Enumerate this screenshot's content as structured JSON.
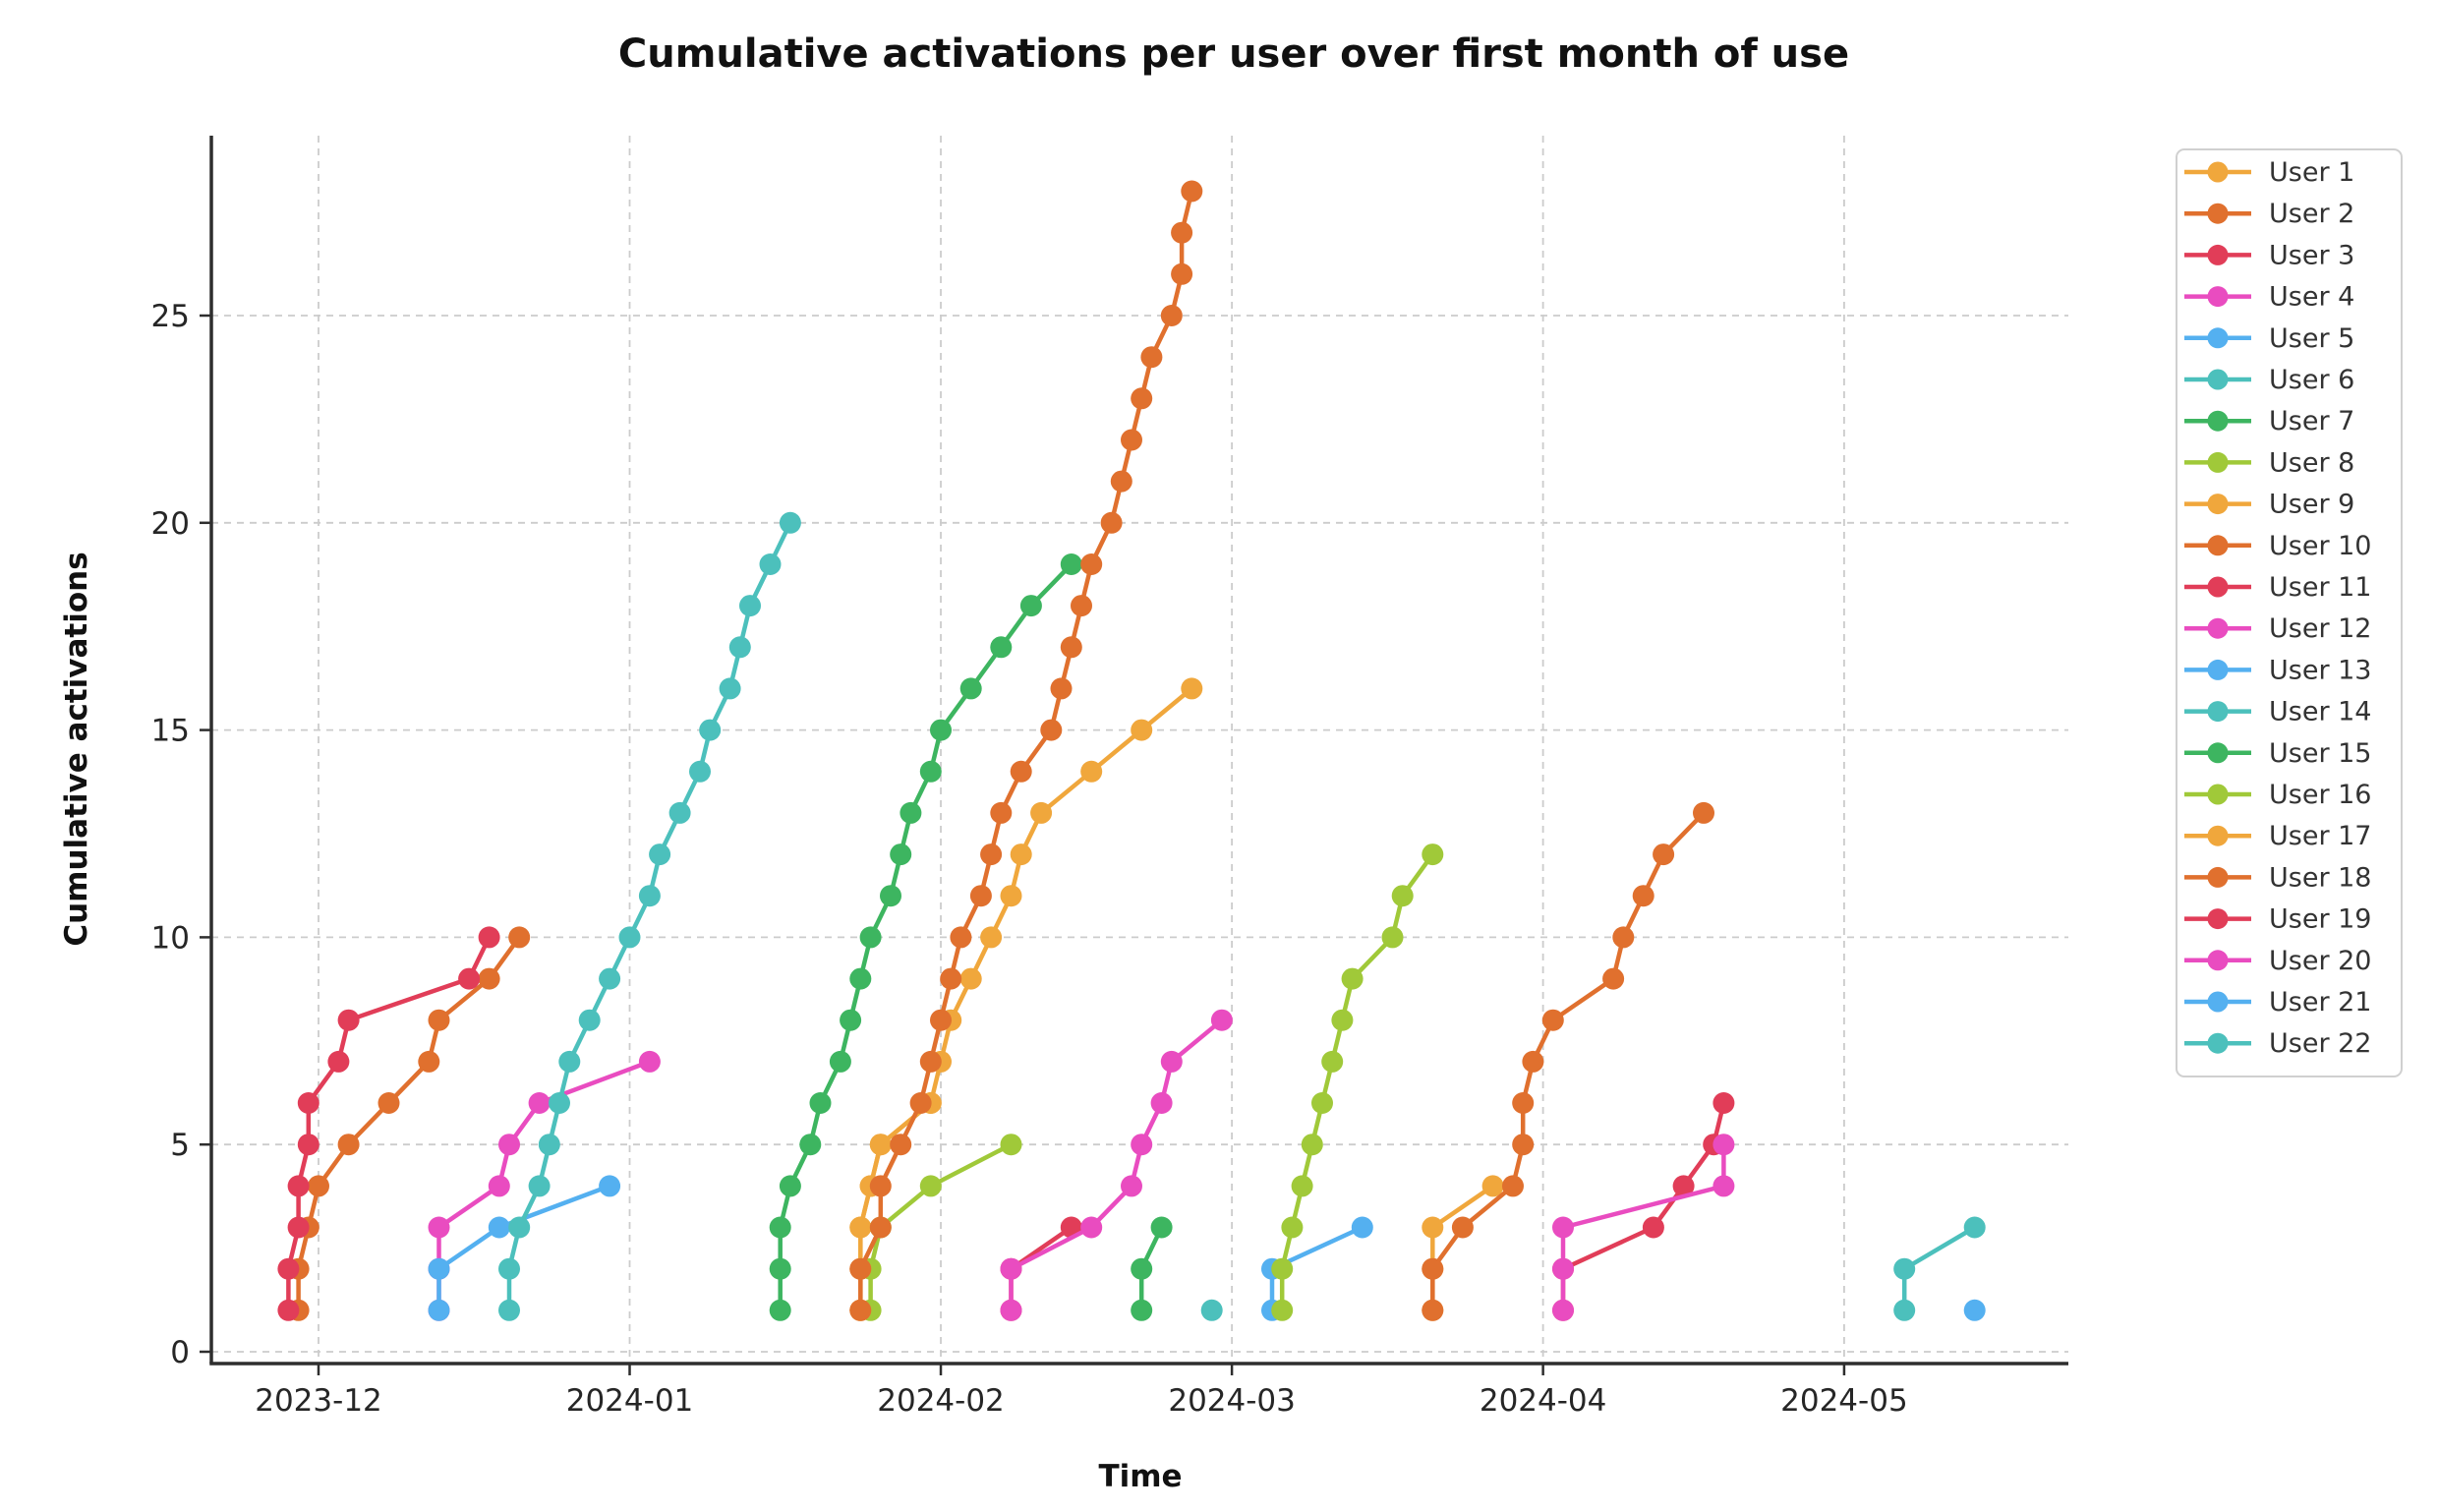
{
  "title": "Cumulative activations per user over first month of use",
  "axes": {
    "xlabel": "Time",
    "ylabel": "Cumulative activations",
    "x_tick_labels": [
      "2023-12",
      "2024-01",
      "2024-02",
      "2024-03",
      "2024-04",
      "2024-05"
    ],
    "x_tick_dates": [
      "2023-12-01",
      "2024-01-01",
      "2024-02-01",
      "2024-03-01",
      "2024-04-01",
      "2024-05-01"
    ],
    "y_tick_values": [
      0,
      5,
      10,
      15,
      20,
      25
    ]
  },
  "style": {
    "grid_color": "#cccccc",
    "spine_color": "#2e2e2e",
    "legend_border_color": "#d0d0d0",
    "background": "#ffffff"
  },
  "chart_data": {
    "type": "line",
    "title": "Cumulative activations per user over first month of use",
    "xlabel": "Time",
    "ylabel": "Cumulative activations",
    "x_axis": "dates from 2023-11-28 to 2024-05-14",
    "ylim": [
      0,
      28
    ],
    "grid": true,
    "legend_position": "right",
    "series": [
      {
        "name": "User 1",
        "color": "#F0A73C",
        "points": [
          [
            "2024-01-24",
            1
          ],
          [
            "2024-01-24",
            2
          ],
          [
            "2024-01-24",
            3
          ],
          [
            "2024-01-25",
            4
          ],
          [
            "2024-01-26",
            5
          ],
          [
            "2024-01-31",
            6
          ]
        ]
      },
      {
        "name": "User 2",
        "color": "#E0702E",
        "points": [
          [
            "2023-11-29",
            1
          ],
          [
            "2023-11-29",
            2
          ],
          [
            "2023-11-30",
            3
          ],
          [
            "2023-12-01",
            4
          ],
          [
            "2023-12-04",
            5
          ],
          [
            "2023-12-08",
            6
          ],
          [
            "2023-12-12",
            7
          ],
          [
            "2023-12-13",
            8
          ],
          [
            "2023-12-18",
            9
          ],
          [
            "2023-12-21",
            10
          ]
        ]
      },
      {
        "name": "User 3",
        "color": "#E13D58",
        "points": [
          [
            "2023-11-28",
            1
          ],
          [
            "2023-11-28",
            2
          ],
          [
            "2023-11-29",
            3
          ],
          [
            "2023-11-29",
            4
          ],
          [
            "2023-11-30",
            5
          ],
          [
            "2023-11-30",
            6
          ],
          [
            "2023-12-03",
            7
          ],
          [
            "2023-12-04",
            8
          ],
          [
            "2023-12-16",
            9
          ],
          [
            "2023-12-18",
            10
          ]
        ]
      },
      {
        "name": "User 4",
        "color": "#E94CC0",
        "points": [
          [
            "2023-12-13",
            1
          ],
          [
            "2023-12-13",
            2
          ],
          [
            "2023-12-13",
            3
          ],
          [
            "2023-12-19",
            4
          ],
          [
            "2023-12-20",
            5
          ],
          [
            "2023-12-23",
            6
          ],
          [
            "2024-01-03",
            7
          ]
        ]
      },
      {
        "name": "User 5",
        "color": "#54B0F0",
        "points": [
          [
            "2023-12-13",
            1
          ],
          [
            "2023-12-13",
            2
          ],
          [
            "2023-12-19",
            3
          ],
          [
            "2023-12-30",
            4
          ]
        ]
      },
      {
        "name": "User 6",
        "color": "#4CC0BC",
        "points": [
          [
            "2023-12-20",
            1
          ],
          [
            "2023-12-20",
            2
          ],
          [
            "2023-12-21",
            3
          ],
          [
            "2023-12-23",
            4
          ],
          [
            "2023-12-24",
            5
          ],
          [
            "2023-12-25",
            6
          ],
          [
            "2023-12-26",
            7
          ],
          [
            "2023-12-28",
            8
          ],
          [
            "2023-12-30",
            9
          ],
          [
            "2024-01-01",
            10
          ],
          [
            "2024-01-03",
            11
          ],
          [
            "2024-01-04",
            12
          ],
          [
            "2024-01-06",
            13
          ],
          [
            "2024-01-08",
            14
          ],
          [
            "2024-01-09",
            15
          ],
          [
            "2024-01-11",
            16
          ],
          [
            "2024-01-12",
            17
          ],
          [
            "2024-01-13",
            18
          ],
          [
            "2024-01-15",
            19
          ],
          [
            "2024-01-17",
            20
          ]
        ]
      },
      {
        "name": "User 7",
        "color": "#3DB560",
        "points": [
          [
            "2024-01-16",
            1
          ],
          [
            "2024-01-16",
            2
          ],
          [
            "2024-01-16",
            3
          ],
          [
            "2024-01-17",
            4
          ],
          [
            "2024-01-19",
            5
          ],
          [
            "2024-01-20",
            6
          ],
          [
            "2024-01-22",
            7
          ],
          [
            "2024-01-23",
            8
          ],
          [
            "2024-01-24",
            9
          ],
          [
            "2024-01-25",
            10
          ],
          [
            "2024-01-27",
            11
          ],
          [
            "2024-01-28",
            12
          ],
          [
            "2024-01-29",
            13
          ],
          [
            "2024-01-31",
            14
          ],
          [
            "2024-02-01",
            15
          ],
          [
            "2024-02-04",
            16
          ],
          [
            "2024-02-07",
            17
          ],
          [
            "2024-02-10",
            18
          ],
          [
            "2024-02-14",
            19
          ]
        ]
      },
      {
        "name": "User 8",
        "color": "#A0C939",
        "points": [
          [
            "2024-01-25",
            1
          ],
          [
            "2024-01-25",
            2
          ],
          [
            "2024-01-26",
            3
          ],
          [
            "2024-01-31",
            4
          ],
          [
            "2024-02-08",
            5
          ]
        ]
      },
      {
        "name": "User 9",
        "color": "#F0A73C",
        "points": [
          [
            "2024-01-24",
            1
          ],
          [
            "2024-01-24",
            2
          ],
          [
            "2024-01-24",
            3
          ],
          [
            "2024-01-25",
            4
          ],
          [
            "2024-01-26",
            5
          ],
          [
            "2024-01-31",
            6
          ],
          [
            "2024-02-01",
            7
          ],
          [
            "2024-02-02",
            8
          ],
          [
            "2024-02-04",
            9
          ],
          [
            "2024-02-06",
            10
          ],
          [
            "2024-02-08",
            11
          ],
          [
            "2024-02-09",
            12
          ],
          [
            "2024-02-11",
            13
          ],
          [
            "2024-02-16",
            14
          ],
          [
            "2024-02-21",
            15
          ],
          [
            "2024-02-26",
            16
          ]
        ]
      },
      {
        "name": "User 10",
        "color": "#E0702E",
        "points": [
          [
            "2024-01-24",
            1
          ],
          [
            "2024-01-24",
            2
          ],
          [
            "2024-01-26",
            3
          ],
          [
            "2024-01-26",
            4
          ],
          [
            "2024-01-28",
            5
          ],
          [
            "2024-01-30",
            6
          ],
          [
            "2024-01-31",
            7
          ],
          [
            "2024-02-01",
            8
          ],
          [
            "2024-02-02",
            9
          ],
          [
            "2024-02-03",
            10
          ],
          [
            "2024-02-05",
            11
          ],
          [
            "2024-02-06",
            12
          ],
          [
            "2024-02-07",
            13
          ],
          [
            "2024-02-09",
            14
          ],
          [
            "2024-02-12",
            15
          ],
          [
            "2024-02-13",
            16
          ],
          [
            "2024-02-14",
            17
          ],
          [
            "2024-02-15",
            18
          ],
          [
            "2024-02-16",
            19
          ],
          [
            "2024-02-18",
            20
          ],
          [
            "2024-02-19",
            21
          ],
          [
            "2024-02-20",
            22
          ],
          [
            "2024-02-21",
            23
          ],
          [
            "2024-02-22",
            24
          ],
          [
            "2024-02-24",
            25
          ],
          [
            "2024-02-25",
            26
          ],
          [
            "2024-02-25",
            27
          ],
          [
            "2024-02-26",
            28
          ]
        ]
      },
      {
        "name": "User 11",
        "color": "#E13D58",
        "points": [
          [
            "2024-02-08",
            1
          ],
          [
            "2024-02-08",
            2
          ],
          [
            "2024-02-14",
            3
          ]
        ]
      },
      {
        "name": "User 12",
        "color": "#E94CC0",
        "points": [
          [
            "2024-02-08",
            1
          ],
          [
            "2024-02-08",
            2
          ],
          [
            "2024-02-16",
            3
          ],
          [
            "2024-02-20",
            4
          ],
          [
            "2024-02-21",
            5
          ],
          [
            "2024-02-23",
            6
          ],
          [
            "2024-02-24",
            7
          ],
          [
            "2024-02-29",
            8
          ]
        ]
      },
      {
        "name": "User 13",
        "color": "#54B0F0",
        "points": [
          [
            "2024-03-05",
            1
          ],
          [
            "2024-03-05",
            2
          ],
          [
            "2024-03-14",
            3
          ]
        ]
      },
      {
        "name": "User 14",
        "color": "#4CC0BC",
        "points": [
          [
            "2024-02-28",
            1
          ]
        ]
      },
      {
        "name": "User 15",
        "color": "#3DB560",
        "points": [
          [
            "2024-02-21",
            1
          ],
          [
            "2024-02-21",
            2
          ],
          [
            "2024-02-23",
            3
          ]
        ]
      },
      {
        "name": "User 16",
        "color": "#A0C939",
        "points": [
          [
            "2024-03-06",
            1
          ],
          [
            "2024-03-06",
            2
          ],
          [
            "2024-03-07",
            3
          ],
          [
            "2024-03-08",
            4
          ],
          [
            "2024-03-09",
            5
          ],
          [
            "2024-03-10",
            6
          ],
          [
            "2024-03-11",
            7
          ],
          [
            "2024-03-12",
            8
          ],
          [
            "2024-03-13",
            9
          ],
          [
            "2024-03-17",
            10
          ],
          [
            "2024-03-18",
            11
          ],
          [
            "2024-03-21",
            12
          ]
        ]
      },
      {
        "name": "User 17",
        "color": "#F0A73C",
        "points": [
          [
            "2024-03-21",
            1
          ],
          [
            "2024-03-21",
            2
          ],
          [
            "2024-03-21",
            3
          ],
          [
            "2024-03-27",
            4
          ]
        ]
      },
      {
        "name": "User 18",
        "color": "#E0702E",
        "points": [
          [
            "2024-03-21",
            1
          ],
          [
            "2024-03-21",
            2
          ],
          [
            "2024-03-24",
            3
          ],
          [
            "2024-03-29",
            4
          ],
          [
            "2024-03-30",
            5
          ],
          [
            "2024-03-30",
            6
          ],
          [
            "2024-03-31",
            7
          ],
          [
            "2024-04-02",
            8
          ],
          [
            "2024-04-08",
            9
          ],
          [
            "2024-04-09",
            10
          ],
          [
            "2024-04-11",
            11
          ],
          [
            "2024-04-13",
            12
          ],
          [
            "2024-04-17",
            13
          ]
        ]
      },
      {
        "name": "User 19",
        "color": "#E13D58",
        "points": [
          [
            "2024-04-03",
            1
          ],
          [
            "2024-04-03",
            2
          ],
          [
            "2024-04-12",
            3
          ],
          [
            "2024-04-15",
            4
          ],
          [
            "2024-04-18",
            5
          ],
          [
            "2024-04-19",
            6
          ]
        ]
      },
      {
        "name": "User 20",
        "color": "#E94CC0",
        "points": [
          [
            "2024-04-03",
            1
          ],
          [
            "2024-04-03",
            2
          ],
          [
            "2024-04-03",
            3
          ],
          [
            "2024-04-19",
            4
          ],
          [
            "2024-04-19",
            5
          ]
        ]
      },
      {
        "name": "User 21",
        "color": "#54B0F0",
        "points": [
          [
            "2024-05-14",
            1
          ]
        ]
      },
      {
        "name": "User 22",
        "color": "#4CC0BC",
        "points": [
          [
            "2024-05-07",
            1
          ],
          [
            "2024-05-07",
            2
          ],
          [
            "2024-05-14",
            3
          ]
        ]
      }
    ]
  }
}
